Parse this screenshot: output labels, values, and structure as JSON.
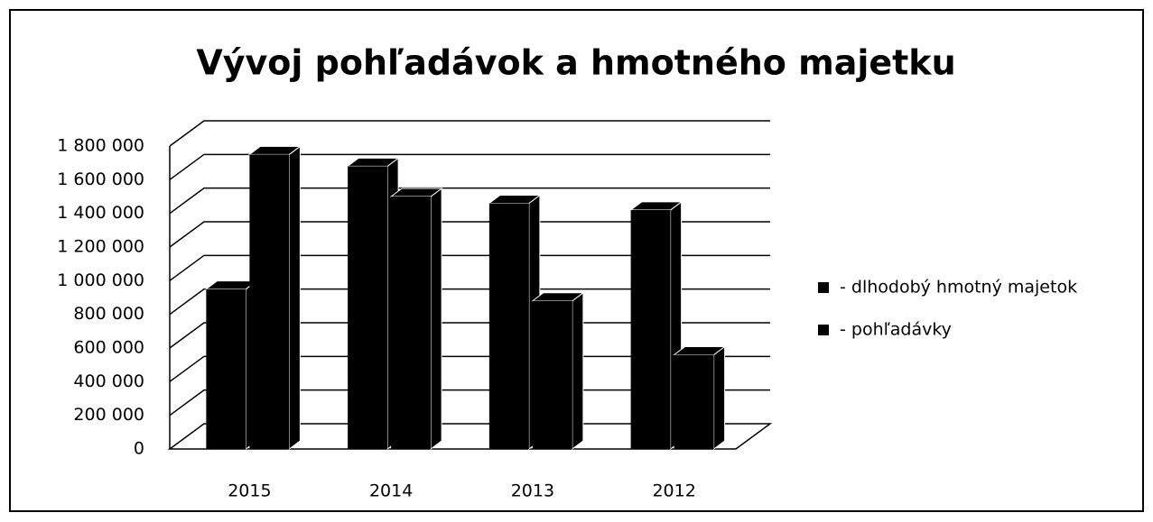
{
  "chart_data": {
    "type": "bar3d",
    "title": "Vývoj pohľadávok a hmotného majetku",
    "categories": [
      "2015",
      "2014",
      "2013",
      "2012"
    ],
    "series": [
      {
        "name": "- dlhodobý hmotný majetok",
        "color": "#000000",
        "values": [
          950000,
          1680000,
          1460000,
          1420000
        ]
      },
      {
        "name": "- pohľadávky",
        "color": "#000000",
        "values": [
          1750000,
          1500000,
          880000,
          560000
        ]
      }
    ],
    "ylim": [
      0,
      1800000
    ],
    "yticks": [
      0,
      {
        "value": 200000,
        "label": "200 000"
      },
      {
        "value": 400000,
        "label": "400 000"
      },
      {
        "value": 600000,
        "label": "600 000"
      },
      {
        "value": 800000,
        "label": "800 000"
      },
      {
        "value": 1000000,
        "label": "1 000 000"
      },
      {
        "value": 1200000,
        "label": "1 200 000"
      },
      {
        "value": 1400000,
        "label": "1 400 000"
      },
      {
        "value": 1600000,
        "label": "1 600 000"
      },
      {
        "value": 1800000,
        "label": "1 800 000"
      }
    ],
    "grid": true,
    "legend": "right"
  }
}
